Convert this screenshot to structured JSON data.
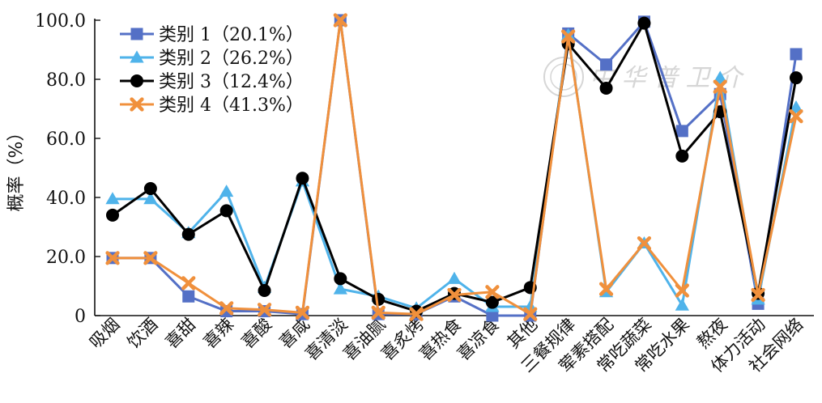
{
  "chart_data": {
    "type": "line",
    "ylabel": "概率（%）",
    "ylim": [
      0,
      100
    ],
    "yticks": [
      "0",
      "20.0",
      "40.0",
      "60.0",
      "80.0",
      "100.0"
    ],
    "categories": [
      "吸烟",
      "饮酒",
      "喜甜",
      "喜辣",
      "喜酸",
      "喜咸",
      "喜清淡",
      "喜油腻",
      "喜炙烤",
      "喜热食",
      "喜凉食",
      "其他",
      "三餐规律",
      "荤素搭配",
      "常吃蔬菜",
      "常吃水果",
      "熬夜",
      "体力活动",
      "社会网络"
    ],
    "legend_position": "top-left",
    "series": [
      {
        "name": "类别 1（20.1%）",
        "color": "#5470c6",
        "marker": "square",
        "values": [
          19.5,
          19.5,
          6.5,
          1.5,
          1.5,
          0.5,
          100,
          0.5,
          0.5,
          6.5,
          0,
          0,
          95.5,
          85,
          99.5,
          62.5,
          75,
          4,
          88.5
        ]
      },
      {
        "name": "类别 2（26.2%）",
        "color": "#4fb3ea",
        "marker": "triangle",
        "values": [
          39.5,
          39.5,
          28,
          42,
          9.5,
          45.5,
          9,
          6.5,
          2.5,
          12.5,
          3,
          3,
          95,
          8,
          24.5,
          3.5,
          80.5,
          5.5,
          70.5
        ]
      },
      {
        "name": "类别 3（12.4%）",
        "color": "#000000",
        "marker": "circle",
        "values": [
          34,
          43,
          27.5,
          35.5,
          8.5,
          46.5,
          12.5,
          5.5,
          1.5,
          7.5,
          4.5,
          9.5,
          92,
          77,
          99,
          54,
          69,
          7.5,
          80.5
        ]
      },
      {
        "name": "类别 4（41.3%）",
        "color": "#f0903c",
        "marker": "x",
        "values": [
          19.5,
          19.5,
          11,
          2.5,
          2,
          1,
          100,
          1,
          0.5,
          7,
          8,
          0.5,
          94.5,
          9,
          24.5,
          8.5,
          77.5,
          7,
          67.5
        ]
      }
    ]
  }
}
